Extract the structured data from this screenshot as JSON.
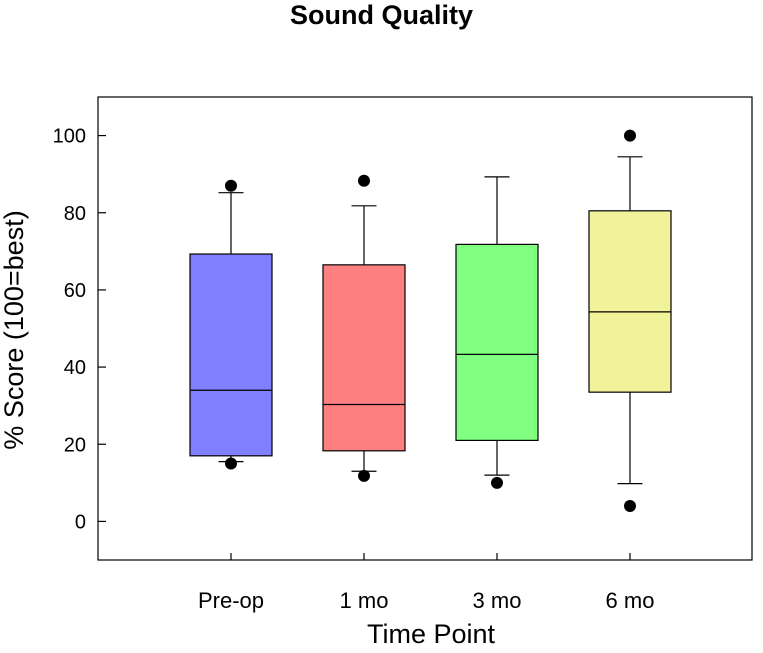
{
  "chart_data": {
    "type": "box",
    "title": "Sound Quality",
    "xlabel": "Time Point",
    "ylabel": "% Score (100=best)",
    "ylim": [
      -10,
      110
    ],
    "yticks": [
      0,
      20,
      40,
      60,
      80,
      100
    ],
    "categories": [
      "Pre-op",
      "1 mo",
      "3 mo",
      "6 mo"
    ],
    "boxes": [
      {
        "label": "Pre-op",
        "color": "#8080ff",
        "whisker_low": 15.5,
        "q1": 17.0,
        "median": 34.0,
        "q3": 69.3,
        "whisker_high": 85.2,
        "outliers": [
          87.0,
          15.0
        ]
      },
      {
        "label": "1 mo",
        "color": "#ff8080",
        "whisker_low": 13.0,
        "q1": 18.3,
        "median": 30.3,
        "q3": 66.5,
        "whisker_high": 81.8,
        "outliers": [
          88.3,
          11.8
        ]
      },
      {
        "label": "3 mo",
        "color": "#80ff80",
        "whisker_low": 12.0,
        "q1": 21.0,
        "median": 43.3,
        "q3": 71.8,
        "whisker_high": 89.3,
        "outliers": [
          10.0
        ]
      },
      {
        "label": "6 mo",
        "color": "#f2f29b",
        "whisker_low": 9.8,
        "q1": 33.5,
        "median": 54.3,
        "q3": 80.5,
        "whisker_high": 94.5,
        "outliers": [
          100.0,
          4.0
        ]
      }
    ]
  }
}
